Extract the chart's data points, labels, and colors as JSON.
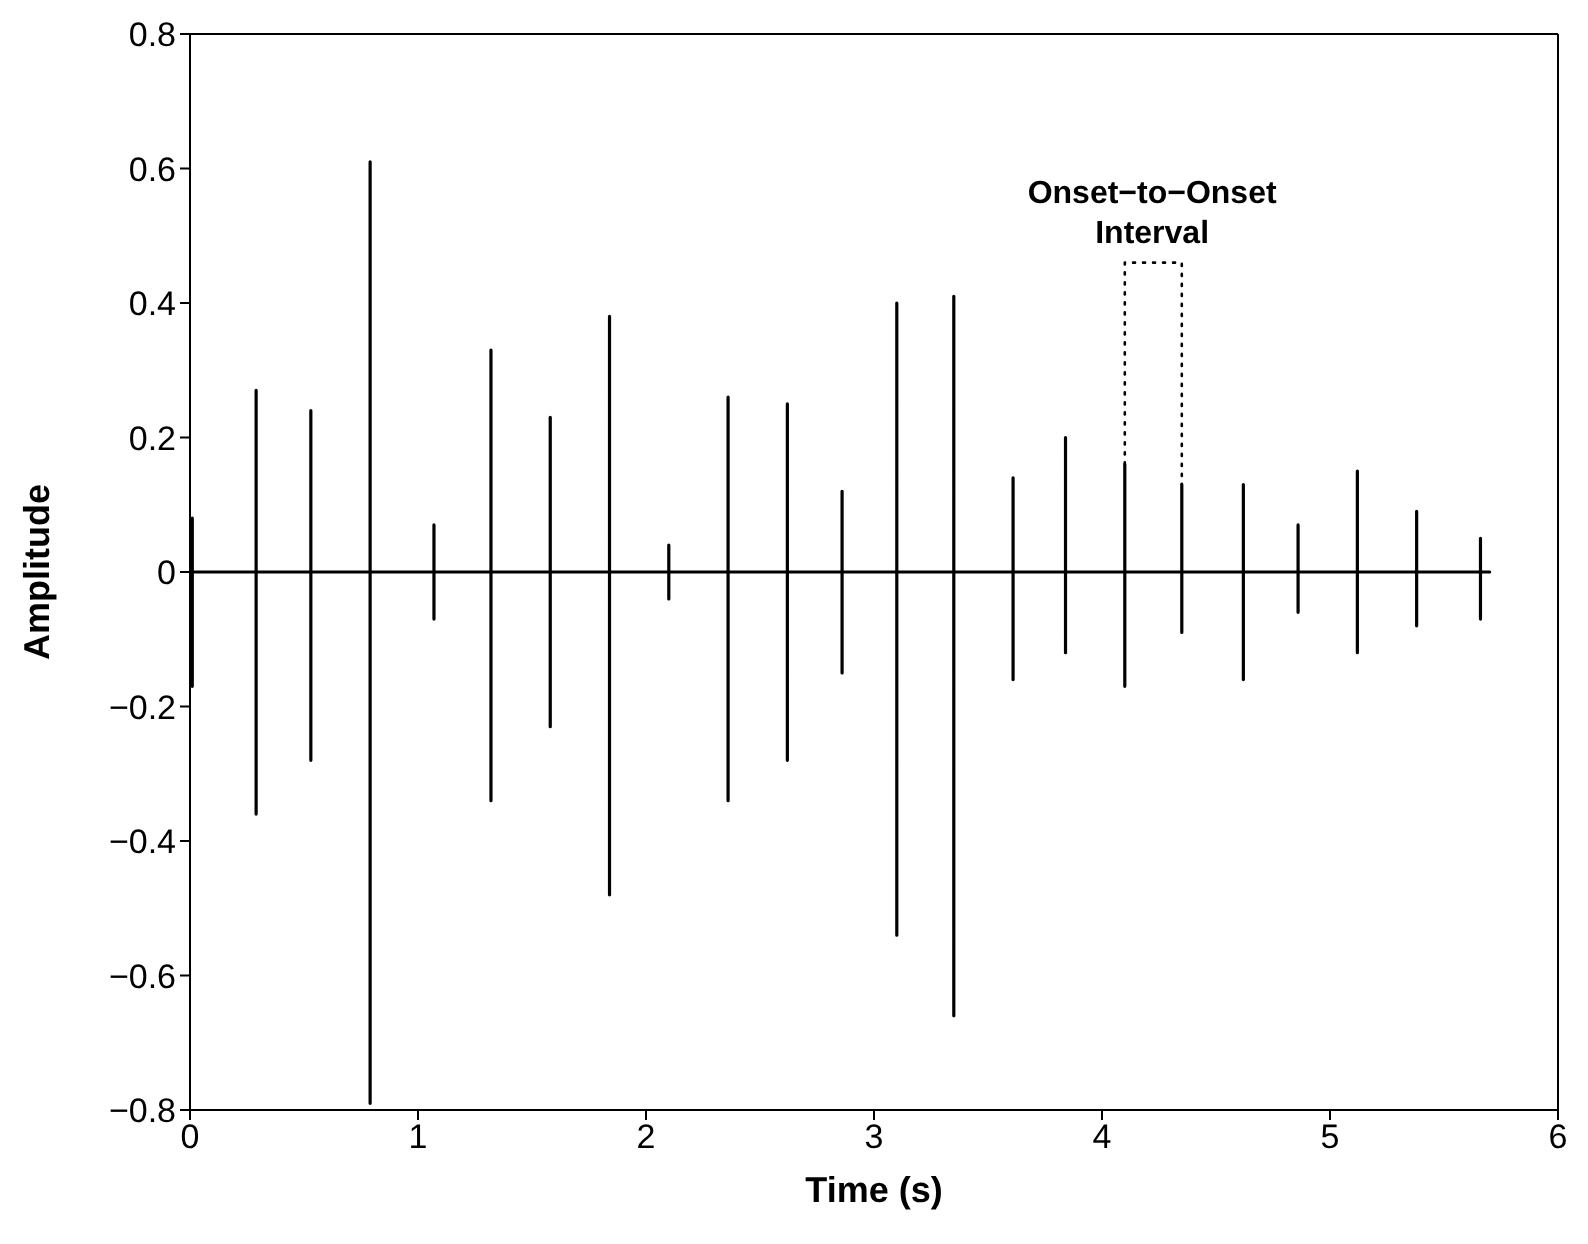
{
  "chart_data": {
    "type": "line",
    "xlabel": "Time (s)",
    "ylabel": "Amplitude",
    "xlim": [
      0,
      6
    ],
    "xticks": [
      0,
      1,
      2,
      3,
      4,
      5,
      6
    ],
    "ylim": [
      -0.8,
      0.8
    ],
    "yticks": [
      -0.8,
      -0.6,
      -0.4,
      -0.2,
      0,
      0.2,
      0.4,
      0.6,
      0.8
    ],
    "grid": false,
    "legend": false,
    "marker": "none",
    "annotations": [
      {
        "text": "Onset−to−Onset\nInterval",
        "x": 4.22,
        "y": 0.46
      }
    ],
    "series": [
      {
        "color": "#000000",
        "line_style": "solid",
        "x": [
          0,
          0.01,
          0.01,
          0.01,
          0.29,
          0.29,
          0.29,
          0.29,
          0.53,
          0.53,
          0.53,
          0.53,
          0.79,
          0.79,
          0.79,
          0.79,
          1.07,
          1.07,
          1.07,
          1.07,
          1.32,
          1.32,
          1.32,
          1.32,
          1.58,
          1.58,
          1.58,
          1.58,
          1.84,
          1.84,
          1.84,
          1.84,
          2.1,
          2.1,
          2.1,
          2.1,
          2.36,
          2.36,
          2.36,
          2.36,
          2.62,
          2.62,
          2.62,
          2.62,
          2.86,
          2.86,
          2.86,
          2.86,
          3.1,
          3.1,
          3.1,
          3.1,
          3.35,
          3.35,
          3.35,
          3.35,
          3.61,
          3.61,
          3.61,
          3.61,
          3.84,
          3.84,
          3.84,
          3.84,
          4.1,
          4.1,
          4.1,
          4.1,
          4.35,
          4.35,
          4.35,
          4.35,
          4.62,
          4.62,
          4.62,
          4.62,
          4.86,
          4.86,
          4.86,
          4.86,
          5.12,
          5.12,
          5.12,
          5.12,
          5.38,
          5.38,
          5.38,
          5.38,
          5.66,
          5.66,
          5.66,
          5.66,
          5.7
        ],
        "values": [
          0,
          0.08,
          -0.17,
          0,
          0,
          0.27,
          -0.36,
          0,
          0,
          0.24,
          -0.28,
          0,
          0,
          0.61,
          -0.79,
          0,
          0,
          0.07,
          -0.07,
          0,
          0,
          0.33,
          -0.34,
          0,
          0,
          0.23,
          -0.23,
          0,
          0,
          0.38,
          -0.48,
          0,
          0,
          0.04,
          -0.04,
          0,
          0,
          0.26,
          -0.34,
          0,
          0,
          0.25,
          -0.28,
          0,
          0,
          0.12,
          -0.15,
          0,
          0,
          0.4,
          -0.54,
          0,
          0,
          0.41,
          -0.66,
          0,
          0,
          0.14,
          -0.16,
          0,
          0,
          0.2,
          -0.12,
          0,
          0,
          0.16,
          -0.17,
          0,
          0,
          0.13,
          -0.09,
          0,
          0,
          0.13,
          -0.16,
          0,
          0,
          0.07,
          -0.06,
          0,
          0,
          0.15,
          -0.12,
          0,
          0,
          0.09,
          -0.08,
          0,
          0,
          0.05,
          -0.07,
          0,
          0
        ]
      },
      {
        "color": "#000000",
        "line_style": "dotted",
        "x": [
          4.1,
          4.1,
          4.35,
          4.35
        ],
        "values": [
          0.16,
          0.46,
          0.46,
          0.13
        ]
      }
    ]
  }
}
